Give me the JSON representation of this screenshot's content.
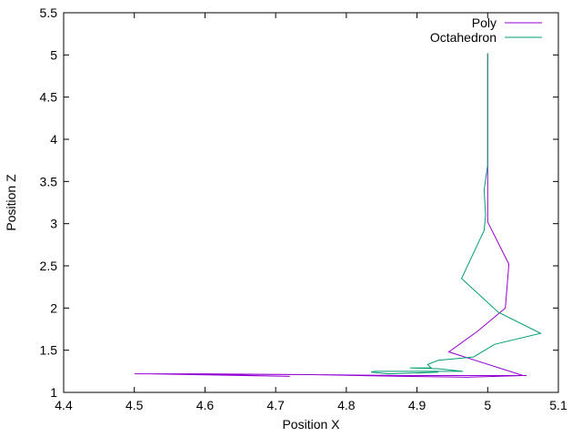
{
  "chart_data": {
    "type": "line",
    "title": "",
    "xlabel": "Position X",
    "ylabel": "Position Z",
    "xlim": [
      4.4,
      5.1
    ],
    "ylim": [
      1,
      5.5
    ],
    "x_ticks": [
      "4.4",
      "4.5",
      "4.6",
      "4.7",
      "4.8",
      "4.9",
      "5",
      "5.1"
    ],
    "y_ticks": [
      "1",
      "1.5",
      "2",
      "2.5",
      "3",
      "3.5",
      "4",
      "4.5",
      "5",
      "5.5"
    ],
    "grid": false,
    "legend_position": "top-right",
    "series": [
      {
        "name": "Poly",
        "color": "#9400d3",
        "points": [
          [
            5.0,
            5.02
          ],
          [
            5.0,
            4.5
          ],
          [
            5.0,
            4.0
          ],
          [
            5.0,
            3.5
          ],
          [
            5.0,
            3.02
          ],
          [
            5.03,
            2.52
          ],
          [
            5.025,
            2.0
          ],
          [
            4.985,
            1.72
          ],
          [
            4.945,
            1.48
          ],
          [
            5.05,
            1.2
          ],
          [
            4.97,
            1.18
          ],
          [
            4.88,
            1.19
          ],
          [
            4.75,
            1.21
          ],
          [
            4.6,
            1.22
          ],
          [
            4.5,
            1.22
          ],
          [
            4.55,
            1.22
          ],
          [
            4.72,
            1.19
          ],
          [
            4.52,
            1.22
          ],
          [
            4.75,
            1.21
          ],
          [
            4.88,
            1.2
          ],
          [
            5.055,
            1.2
          ]
        ]
      },
      {
        "name": "Octahedron",
        "color": "#009e73",
        "points": [
          [
            5.0,
            5.02
          ],
          [
            5.0,
            4.5
          ],
          [
            5.0,
            3.7
          ],
          [
            4.995,
            3.4
          ],
          [
            4.997,
            3.1
          ],
          [
            4.995,
            2.92
          ],
          [
            4.963,
            2.35
          ],
          [
            5.015,
            1.95
          ],
          [
            5.075,
            1.7
          ],
          [
            5.01,
            1.57
          ],
          [
            4.98,
            1.42
          ],
          [
            4.93,
            1.38
          ],
          [
            4.915,
            1.33
          ],
          [
            4.92,
            1.29
          ],
          [
            4.89,
            1.29
          ],
          [
            4.93,
            1.28
          ],
          [
            4.965,
            1.25
          ],
          [
            4.84,
            1.25
          ],
          [
            4.835,
            1.24
          ],
          [
            4.86,
            1.22
          ],
          [
            4.93,
            1.24
          ],
          [
            4.9,
            1.23
          ]
        ]
      }
    ]
  }
}
